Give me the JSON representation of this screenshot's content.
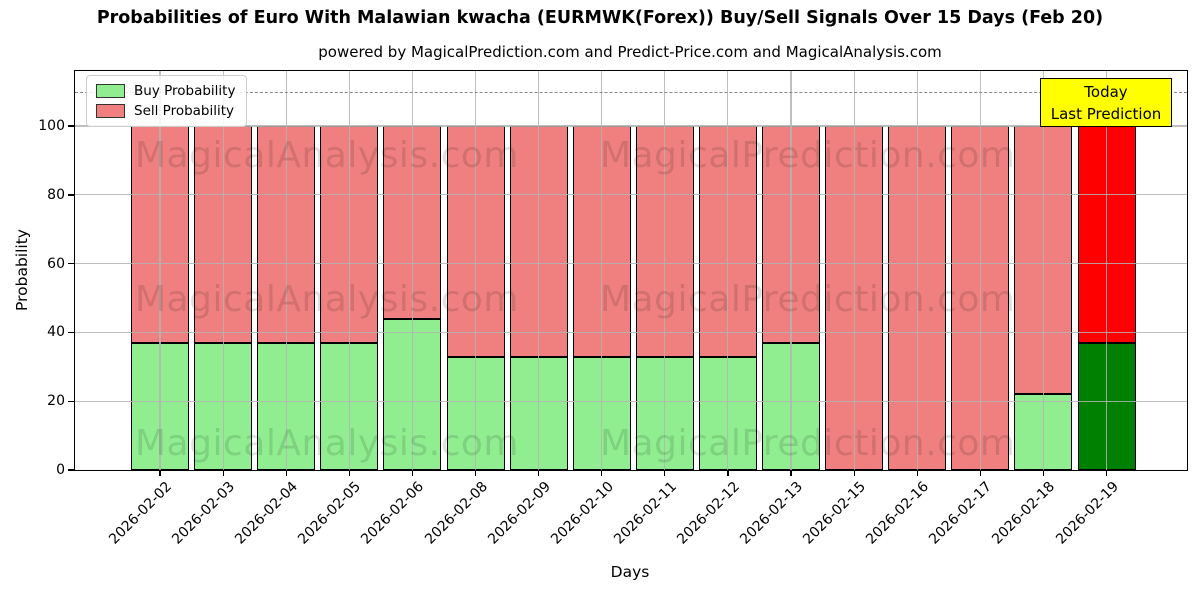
{
  "title": "Probabilities of Euro With Malawian kwacha (EURMWK(Forex)) Buy/Sell Signals Over 15 Days (Feb 20)",
  "subtitle": "powered by MagicalPrediction.com and Predict-Price.com and MagicalAnalysis.com",
  "legend": {
    "items": [
      {
        "label": "Buy Probability",
        "color": "#90EE90"
      },
      {
        "label": "Sell Probability",
        "color": "#F08080"
      }
    ]
  },
  "annotation": {
    "line1": "Today",
    "line2": "Last Prediction",
    "bg_color": "#FFFF00"
  },
  "axes": {
    "x_label": "Days",
    "y_label": "Probability",
    "y_ticks": [
      0,
      20,
      40,
      60,
      80,
      100
    ]
  },
  "watermarks": {
    "left_text": "MagicalAnalysis.com",
    "right_text": "MagicalPrediction.com",
    "rows": 3
  },
  "colors": {
    "buy": "#90EE90",
    "sell": "#F08080",
    "today_buy": "#008000",
    "today_sell": "#FF0000",
    "bar_edge": "#000000",
    "grid": "rgba(180,180,180,0.85)",
    "dashed_line": "#888888",
    "annotation_bg": "#FFFF00"
  },
  "chart_data": {
    "type": "bar",
    "stacked": true,
    "title": "Probabilities of Euro With Malawian kwacha (EURMWK(Forex)) Buy/Sell Signals Over 15 Days (Feb 20)",
    "xlabel": "Days",
    "ylabel": "Probability",
    "ylim": [
      0,
      116
    ],
    "dashed_line_y": 110,
    "grid": true,
    "legend_position": "upper left",
    "categories": [
      "2026-02-02",
      "2026-02-03",
      "2026-02-04",
      "2026-02-05",
      "2026-02-06",
      "2026-02-08",
      "2026-02-09",
      "2026-02-10",
      "2026-02-11",
      "2026-02-12",
      "2026-02-13",
      "2026-02-15",
      "2026-02-16",
      "2026-02-17",
      "2026-02-18",
      "2026-02-19"
    ],
    "series": [
      {
        "name": "Buy Probability",
        "values": [
          37,
          37,
          37,
          37,
          44,
          33,
          33,
          33,
          33,
          33,
          37,
          0,
          0,
          0,
          22,
          37
        ]
      },
      {
        "name": "Sell Probability",
        "values": [
          63,
          63,
          63,
          63,
          56,
          67,
          67,
          67,
          67,
          67,
          63,
          100,
          100,
          100,
          78,
          63
        ]
      }
    ],
    "today_index": 15
  }
}
